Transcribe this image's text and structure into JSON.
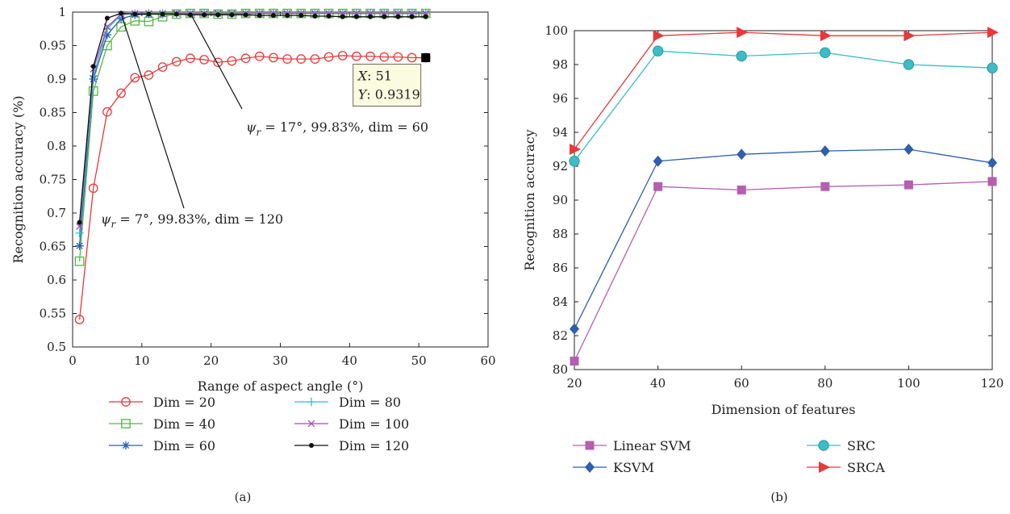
{
  "chart_data": [
    {
      "type": "line",
      "caption": "(a)",
      "xlabel": "Range of aspect angle (°)",
      "ylabel": "Recognition accuracy (%)",
      "xlim": [
        0,
        60
      ],
      "ylim": [
        0.5,
        1
      ],
      "xticks": [
        "0",
        "10",
        "20",
        "30",
        "40",
        "50",
        "60"
      ],
      "yticks": [
        "0.5",
        "0.55",
        "0.6",
        "0.65",
        "0.7",
        "0.75",
        "0.8",
        "0.85",
        "0.9",
        "0.95",
        "1"
      ],
      "grid": false,
      "legend_position": "below",
      "x": [
        1,
        3,
        5,
        7,
        9,
        11,
        13,
        15,
        17,
        19,
        21,
        23,
        25,
        27,
        29,
        31,
        33,
        35,
        37,
        39,
        41,
        43,
        45,
        47,
        49,
        51
      ],
      "series": [
        {
          "name": "Dim = 20",
          "color": "#e8383b",
          "marker": "circle",
          "values": [
            0.541,
            0.737,
            0.851,
            0.879,
            0.902,
            0.906,
            0.918,
            0.926,
            0.931,
            0.929,
            0.925,
            0.927,
            0.931,
            0.934,
            0.932,
            0.93,
            0.93,
            0.93,
            0.933,
            0.935,
            0.934,
            0.934,
            0.933,
            0.933,
            0.932,
            0.9319
          ]
        },
        {
          "name": "Dim = 40",
          "color": "#55b848",
          "marker": "square",
          "values": [
            0.628,
            0.882,
            0.95,
            0.978,
            0.987,
            0.986,
            0.993,
            0.997,
            0.998,
            0.998,
            0.997,
            0.997,
            0.998,
            0.998,
            0.998,
            0.998,
            0.998,
            0.998,
            0.998,
            0.998,
            0.998,
            0.998,
            0.998,
            0.998,
            0.998,
            0.998
          ]
        },
        {
          "name": "Dim = 60",
          "color": "#2a5fb7",
          "marker": "star",
          "values": [
            0.651,
            0.9,
            0.966,
            0.99,
            0.996,
            0.997,
            0.997,
            0.998,
            0.998,
            0.998,
            0.998,
            0.998,
            0.998,
            0.998,
            0.998,
            0.998,
            0.998,
            0.998,
            0.998,
            0.998,
            0.998,
            0.998,
            0.998,
            0.998,
            0.998,
            0.998
          ]
        },
        {
          "name": "Dim = 80",
          "color": "#3bbad0",
          "marker": "plus",
          "values": [
            0.67,
            0.905,
            0.975,
            0.996,
            0.998,
            0.998,
            0.998,
            0.998,
            0.998,
            0.998,
            0.998,
            0.998,
            0.998,
            0.998,
            0.998,
            0.998,
            0.998,
            0.998,
            0.998,
            0.998,
            0.998,
            0.998,
            0.998,
            0.998,
            0.998,
            0.998
          ]
        },
        {
          "name": "Dim = 100",
          "color": "#a24fb5",
          "marker": "x",
          "values": [
            0.68,
            0.915,
            0.978,
            0.997,
            0.998,
            0.998,
            0.998,
            0.998,
            0.998,
            0.998,
            0.998,
            0.998,
            0.998,
            0.998,
            0.998,
            0.998,
            0.998,
            0.998,
            0.998,
            0.998,
            0.998,
            0.998,
            0.998,
            0.998,
            0.998,
            0.998
          ]
        },
        {
          "name": "Dim = 120",
          "color": "#111111",
          "marker": "dot",
          "values": [
            0.686,
            0.919,
            0.991,
            0.9983,
            0.997,
            0.997,
            0.997,
            0.997,
            0.996,
            0.996,
            0.996,
            0.996,
            0.996,
            0.995,
            0.995,
            0.995,
            0.995,
            0.994,
            0.994,
            0.993,
            0.993,
            0.993,
            0.993,
            0.993,
            0.993,
            0.993
          ]
        }
      ],
      "datatip": {
        "x_label": "X",
        "x_value": "51",
        "y_label": "Y",
        "y_value": "0.9319",
        "x": 51,
        "y": 0.9319
      },
      "annotations": [
        {
          "sym": "ψ",
          "sub": "r",
          "rest": " = 17°, 99.83%, dim = 60",
          "x": 17,
          "y": 0.9983
        },
        {
          "sym": "ψ",
          "sub": "r",
          "rest": " = 7°, 99.83%, dim = 120",
          "x": 7,
          "y": 0.9983
        }
      ]
    },
    {
      "type": "line",
      "caption": "(b)",
      "xlabel": "Dimension of features",
      "ylabel": "Recognition accuracy",
      "xlim": [
        20,
        120
      ],
      "ylim": [
        80,
        100
      ],
      "xticks": [
        "20",
        "40",
        "60",
        "80",
        "100",
        "120"
      ],
      "yticks": [
        "80",
        "82",
        "84",
        "86",
        "88",
        "90",
        "92",
        "94",
        "96",
        "98",
        "100"
      ],
      "grid": false,
      "legend_position": "below",
      "x": [
        20,
        40,
        60,
        80,
        100,
        120
      ],
      "series": [
        {
          "name": "Linear SVM",
          "color": "#b45fb0",
          "marker": "square",
          "values": [
            80.5,
            90.8,
            90.6,
            90.8,
            90.9,
            91.1
          ]
        },
        {
          "name": "KSVM",
          "color": "#2f5fad",
          "marker": "diamond",
          "values": [
            82.4,
            92.3,
            92.7,
            92.9,
            93.0,
            92.2
          ]
        },
        {
          "name": "SRC",
          "color": "#3dbdc3",
          "marker": "circle",
          "values": [
            92.3,
            98.8,
            98.5,
            98.7,
            98.0,
            97.8
          ]
        },
        {
          "name": "SRCA",
          "color": "#e8383b",
          "marker": "triangle-right",
          "values": [
            93.0,
            99.7,
            99.9,
            99.7,
            99.7,
            99.9
          ]
        }
      ]
    }
  ]
}
